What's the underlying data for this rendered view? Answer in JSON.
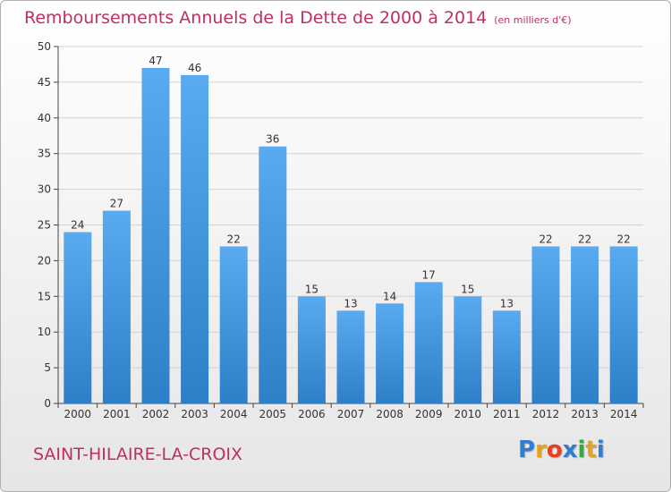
{
  "chart_data": {
    "type": "bar",
    "title": "Remboursements Annuels de la Dette de 2000 à 2014",
    "subtitle": "(en milliers d'€)",
    "categories": [
      "2000",
      "2001",
      "2002",
      "2003",
      "2004",
      "2005",
      "2006",
      "2007",
      "2008",
      "2009",
      "2010",
      "2011",
      "2012",
      "2013",
      "2014"
    ],
    "values": [
      24,
      27,
      47,
      46,
      22,
      36,
      15,
      13,
      14,
      17,
      15,
      13,
      22,
      22,
      22
    ],
    "ylim": [
      0,
      50
    ],
    "yticks": [
      0,
      5,
      10,
      15,
      20,
      25,
      30,
      35,
      40,
      45,
      50
    ],
    "xlabel": "",
    "ylabel": "",
    "grid": true,
    "bar_color": "#4a9be0"
  },
  "footer": {
    "commune": "SAINT-HILAIRE-LA-CROIX",
    "logo": "Proxiti",
    "logo_colors": [
      "#2f7fd0",
      "#e8a020",
      "#e84020",
      "#2f7fd0",
      "#38a838",
      "#e8a020",
      "#2f7fd0"
    ]
  }
}
